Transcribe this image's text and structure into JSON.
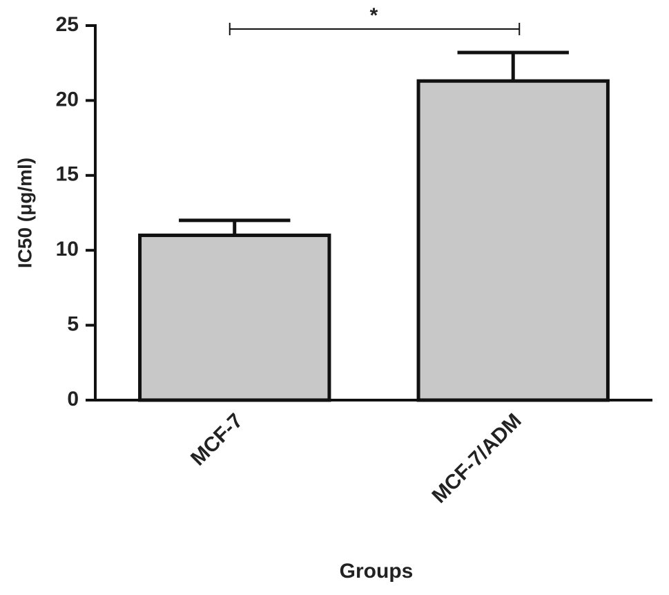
{
  "chart_data": {
    "type": "bar",
    "categories": [
      "MCF-7",
      "MCF-7/ADM"
    ],
    "values": [
      11.0,
      21.3
    ],
    "errors": [
      1.0,
      1.9
    ],
    "color": "#c8c8c8",
    "ylim": [
      0,
      25
    ],
    "yticks": [
      0,
      5,
      10,
      15,
      20,
      25
    ],
    "y_label": "IC50 (μg/ml)",
    "x_label": "Groups",
    "annotation": "*"
  }
}
